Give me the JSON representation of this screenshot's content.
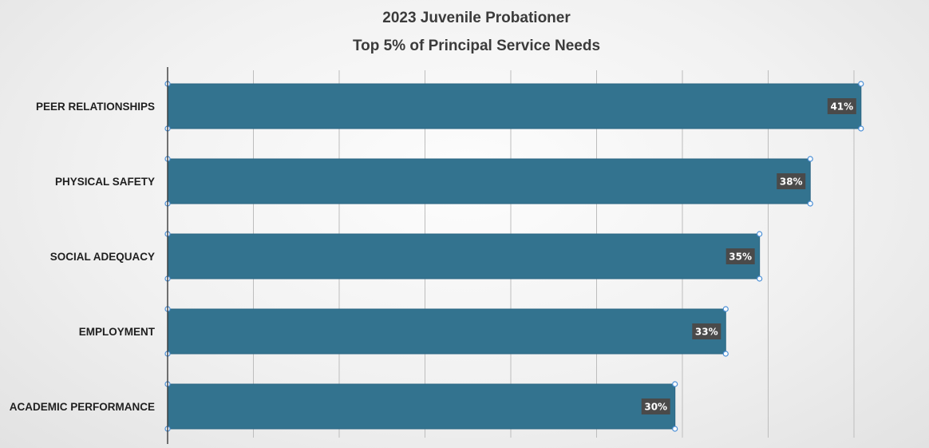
{
  "chart_data": {
    "type": "bar",
    "orientation": "horizontal",
    "title": "2023 Juvenile Probationer",
    "subtitle": "Top 5% of Principal Service Needs",
    "categories": [
      "PEER RELATIONSHIPS",
      "PHYSICAL SAFETY",
      "SOCIAL ADEQUACY",
      "EMPLOYMENT",
      "ACADEMIC PERFORMANCE"
    ],
    "values": [
      41,
      38,
      35,
      33,
      30
    ],
    "value_labels": [
      "41%",
      "38%",
      "35%",
      "33%",
      "30%"
    ],
    "xlim": [
      0,
      42
    ],
    "grid": true,
    "legend": "none",
    "colors": {
      "bar": "#33738f",
      "label_box": "#4a4a4a",
      "label_text": "#ffffff"
    }
  }
}
